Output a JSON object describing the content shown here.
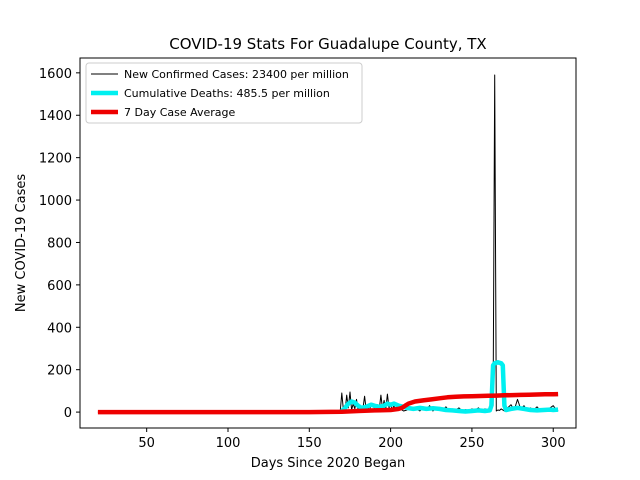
{
  "chart_data": {
    "type": "line",
    "title": "COVID-19 Stats For Guadalupe County, TX",
    "xlabel": "Days Since 2020 Began",
    "ylabel": "New COVID-19 Cases",
    "xlim": [
      9,
      314
    ],
    "ylim": [
      -75,
      1670
    ],
    "xticks": [
      50,
      100,
      150,
      200,
      250,
      300
    ],
    "yticks": [
      0,
      200,
      400,
      600,
      800,
      1000,
      1200,
      1400,
      1600
    ],
    "grid": false,
    "legend_position": "top-left",
    "series": [
      {
        "name": "New Confirmed Cases: 23400 per million",
        "color": "#000000",
        "linewidth": 1,
        "x": [
          20,
          60,
          100,
          150,
          169,
          170,
          171,
          172,
          173,
          174,
          175,
          176,
          177,
          178,
          179,
          180,
          181,
          182,
          183,
          184,
          185,
          186,
          187,
          188,
          190,
          192,
          193,
          194,
          195,
          196,
          197,
          198,
          199,
          200,
          201,
          202,
          203,
          204,
          205,
          206,
          208,
          210,
          212,
          214,
          216,
          218,
          220,
          222,
          224,
          226,
          228,
          230,
          232,
          234,
          236,
          238,
          240,
          242,
          244,
          246,
          248,
          250,
          252,
          254,
          256,
          258,
          260,
          261,
          262,
          263,
          264,
          265,
          266,
          267,
          268,
          270,
          272,
          274,
          276,
          278,
          280,
          282,
          284,
          286,
          288,
          290,
          292,
          294,
          296,
          298,
          300,
          302,
          303
        ],
        "y": [
          0,
          0,
          0,
          0,
          2,
          90,
          10,
          5,
          80,
          20,
          95,
          10,
          40,
          15,
          60,
          10,
          30,
          5,
          20,
          75,
          10,
          25,
          5,
          40,
          20,
          35,
          10,
          80,
          15,
          55,
          10,
          85,
          20,
          40,
          10,
          30,
          5,
          20,
          10,
          15,
          5,
          10,
          20,
          8,
          15,
          5,
          25,
          10,
          30,
          5,
          20,
          15,
          10,
          25,
          5,
          15,
          10,
          20,
          5,
          12,
          8,
          15,
          10,
          20,
          5,
          15,
          10,
          5,
          15,
          30,
          1590,
          5,
          10,
          8,
          15,
          5,
          20,
          35,
          10,
          60,
          15,
          30,
          5,
          20,
          10,
          25,
          8,
          15,
          5,
          20,
          30,
          10,
          5
        ]
      },
      {
        "name": "Cumulative Deaths: 485.5 per million",
        "color": "#00f0f0",
        "linewidth": 4.5,
        "x": [
          170,
          172,
          174,
          176,
          178,
          180,
          182,
          185,
          188,
          190,
          193,
          196,
          198,
          200,
          202,
          205,
          208,
          210,
          214,
          218,
          222,
          226,
          230,
          234,
          238,
          242,
          246,
          250,
          254,
          258,
          261,
          262,
          263,
          264,
          266,
          268,
          269,
          270,
          271,
          274,
          278,
          282,
          286,
          290,
          294,
          298,
          300,
          303
        ],
        "y": [
          5,
          20,
          40,
          50,
          45,
          30,
          20,
          25,
          35,
          30,
          25,
          30,
          40,
          35,
          40,
          30,
          25,
          20,
          15,
          20,
          15,
          18,
          15,
          10,
          8,
          5,
          3,
          5,
          8,
          5,
          8,
          30,
          220,
          230,
          235,
          230,
          220,
          30,
          10,
          15,
          20,
          15,
          10,
          8,
          10,
          12,
          10,
          12
        ]
      },
      {
        "name": "7 Day Case Average",
        "color": "#ee0000",
        "linewidth": 4.5,
        "x": [
          20,
          60,
          100,
          150,
          170,
          180,
          190,
          200,
          205,
          207,
          209,
          211,
          215,
          220,
          225,
          230,
          235,
          240,
          245,
          250,
          255,
          260,
          265,
          270,
          275,
          280,
          285,
          290,
          295,
          300,
          303
        ],
        "y": [
          0,
          0,
          0,
          0,
          2,
          5,
          8,
          10,
          15,
          20,
          30,
          40,
          50,
          55,
          60,
          65,
          70,
          72,
          74,
          75,
          76,
          77,
          78,
          79,
          80,
          81,
          82,
          83,
          84,
          84,
          85
        ]
      }
    ]
  }
}
